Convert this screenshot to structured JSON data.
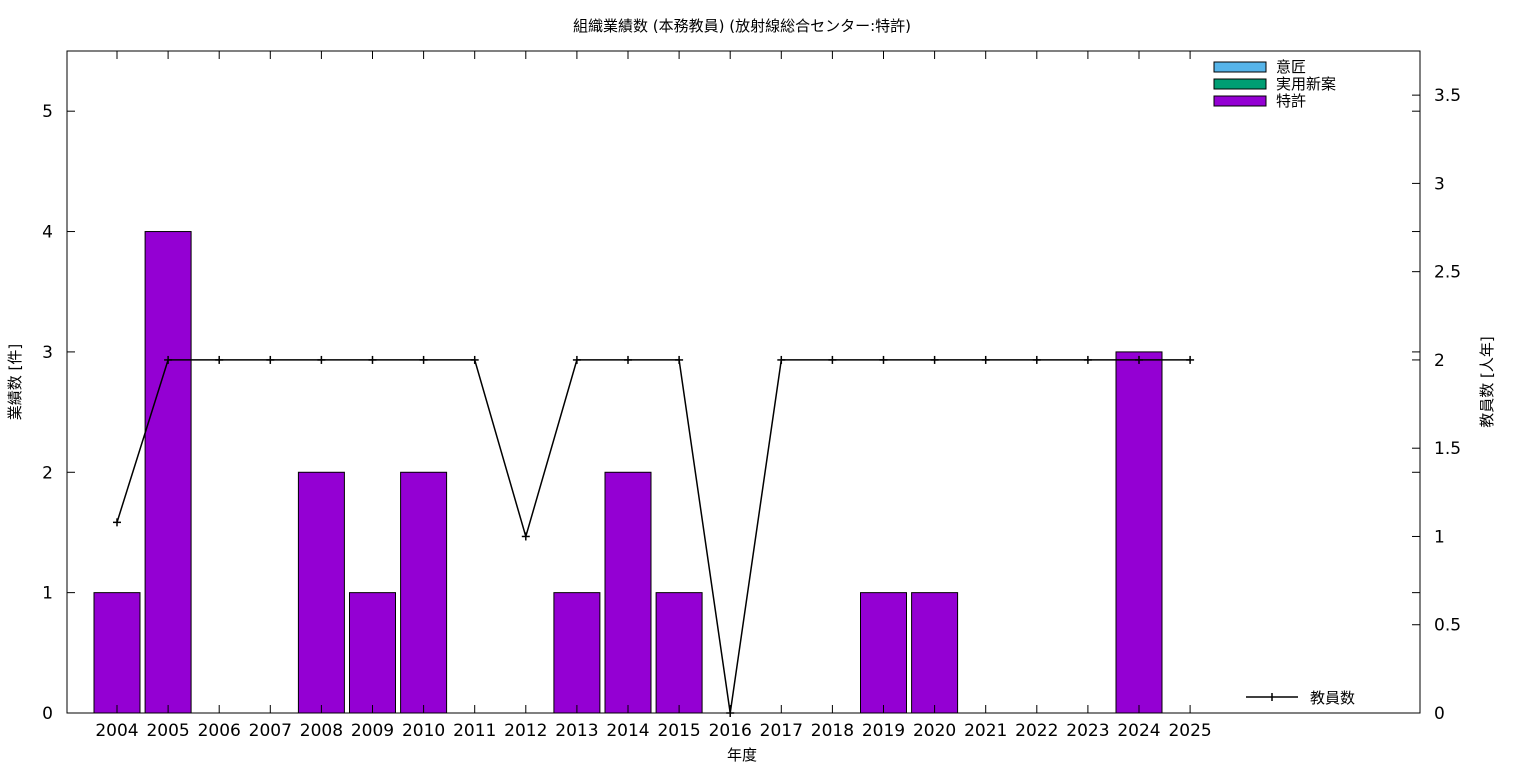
{
  "chart_data": {
    "type": "bar",
    "title": "組織業績数 (本務教員) (放射線総合センター:特許)",
    "xlabel": "年度",
    "ylabel": "業績数 [件]",
    "y2label": "教員数 [人年]",
    "categories": [
      "2004",
      "2005",
      "2006",
      "2007",
      "2008",
      "2009",
      "2010",
      "2011",
      "2012",
      "2013",
      "2014",
      "2015",
      "2016",
      "2017",
      "2018",
      "2019",
      "2020",
      "2021",
      "2022",
      "2023",
      "2024",
      "2025"
    ],
    "series": [
      {
        "name": "意匠",
        "color": "#56b4e9",
        "values": [
          0,
          0,
          0,
          0,
          0,
          0,
          0,
          0,
          0,
          0,
          0,
          0,
          0,
          0,
          0,
          0,
          0,
          0,
          0,
          0,
          0,
          0
        ]
      },
      {
        "name": "実用新案",
        "color": "#009e73",
        "values": [
          0,
          0,
          0,
          0,
          0,
          0,
          0,
          0,
          0,
          0,
          0,
          0,
          0,
          0,
          0,
          0,
          0,
          0,
          0,
          0,
          0,
          0
        ]
      },
      {
        "name": "特許",
        "color": "#9400d3",
        "values": [
          1,
          4,
          0,
          0,
          2,
          1,
          2,
          0,
          0,
          1,
          2,
          1,
          0,
          0,
          0,
          1,
          1,
          0,
          0,
          0,
          3,
          0
        ]
      }
    ],
    "line_series": {
      "name": "教員数",
      "color": "#000000",
      "values": [
        1.08,
        2,
        2,
        2,
        2,
        2,
        2,
        2,
        1,
        2,
        2,
        2,
        0,
        2,
        2,
        2,
        2,
        2,
        2,
        2,
        2,
        2
      ]
    },
    "ylim": [
      0,
      5.5
    ],
    "y2lim": [
      0,
      3.75
    ],
    "yticks": [
      "0",
      "1",
      "2",
      "3",
      "4",
      "5"
    ],
    "y2ticks": [
      "0",
      "0.5",
      "1",
      "1.5",
      "2",
      "2.5",
      "3",
      "3.5"
    ],
    "legend_placement": "top-right",
    "line_legend_placement": "bottom-right",
    "grid": false
  }
}
